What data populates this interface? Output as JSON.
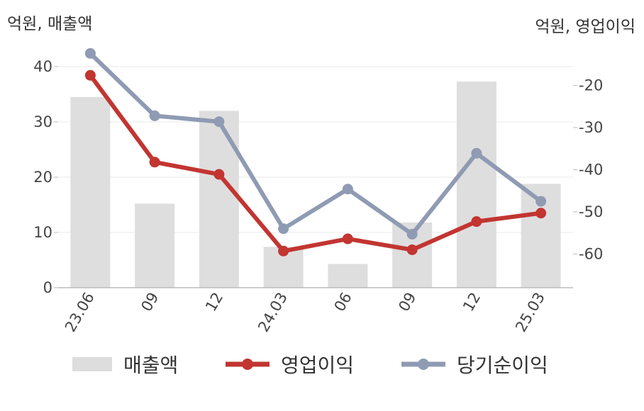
{
  "units": {
    "left": "억원, 매출액",
    "right": "억원, 영업이익"
  },
  "legend": {
    "bar": "매출액",
    "op": "영업이익",
    "net": "당기순이익"
  },
  "colors": {
    "bar": "#dedede",
    "op": "#c23531",
    "net": "#8f9bb3",
    "grid": "#e8e8e8",
    "axis": "#bbbbbb"
  },
  "chart_data": {
    "type": "bar+line",
    "categories": [
      "23.06",
      "09",
      "12",
      "24.03",
      "06",
      "09",
      "12",
      "25.03"
    ],
    "left_axis": {
      "ylim": [
        0,
        40
      ],
      "ticks": [
        0,
        10,
        20,
        30,
        40
      ]
    },
    "right_axis": {
      "ylim": [
        -68,
        -12
      ],
      "ticks": [
        -20,
        -30,
        -40,
        -50,
        -60
      ]
    },
    "series": [
      {
        "name": "매출액",
        "type": "bar",
        "axis": "left",
        "values": [
          34.5,
          15.2,
          32.0,
          7.4,
          4.3,
          11.8,
          37.3,
          18.8
        ]
      },
      {
        "name": "영업이익",
        "type": "line",
        "axis": "right",
        "values": [
          -17.6,
          -38.2,
          -41.1,
          -59.3,
          -56.4,
          -59.0,
          -52.3,
          -50.3
        ]
      },
      {
        "name": "당기순이익",
        "type": "line",
        "axis": "right",
        "values": [
          -12.4,
          -27.2,
          -28.6,
          -54.0,
          -44.6,
          -55.3,
          -36.1,
          -47.5
        ]
      }
    ]
  }
}
